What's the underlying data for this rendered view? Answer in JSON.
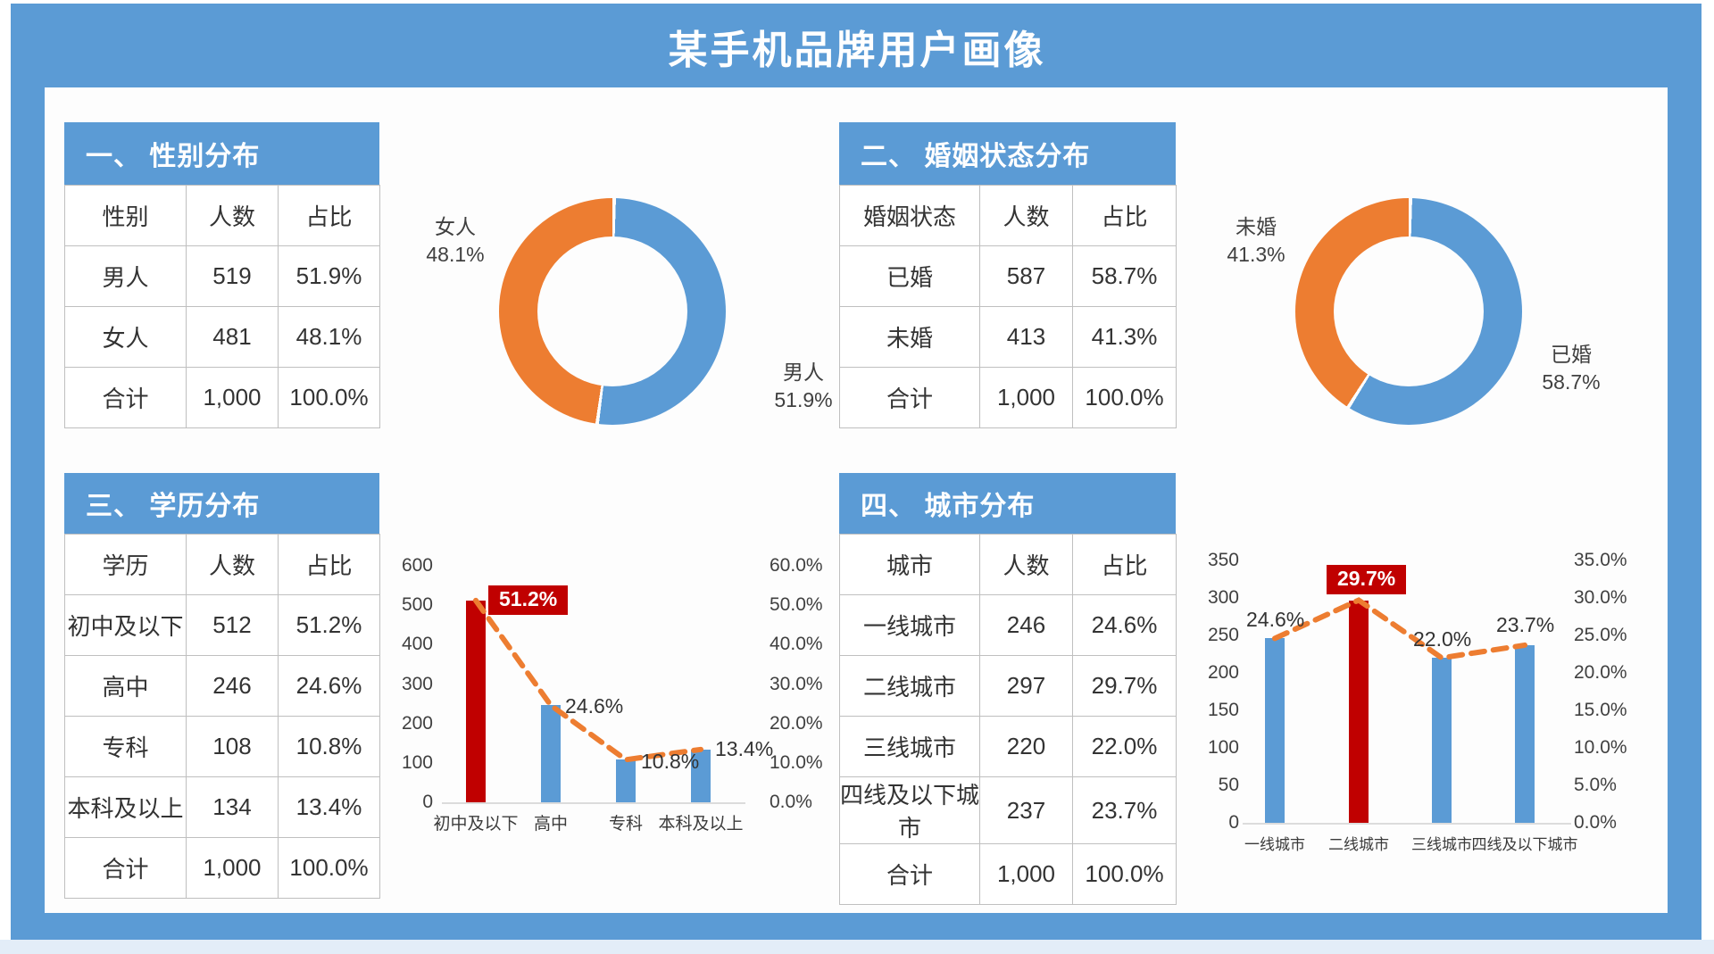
{
  "page": {
    "title": "某手机品牌用户画像"
  },
  "colors": {
    "frame_blue": "#5B9BD5",
    "bar_blue": "#5B9BD5",
    "orange": "#ED7D31",
    "red": "#C00000",
    "panel_bg": "#FDFDFD",
    "table_border": "#BFBFBF",
    "text": "#333333"
  },
  "sections": [
    {
      "heading": "一、 性别分布",
      "table": {
        "headers": [
          "性别",
          "人数",
          "占比"
        ],
        "rows": [
          [
            "男人",
            "519",
            "51.9%"
          ],
          [
            "女人",
            "481",
            "48.1%"
          ],
          [
            "合计",
            "1,000",
            "100.0%"
          ]
        ]
      }
    },
    {
      "heading": "二、 婚姻状态分布",
      "table": {
        "headers": [
          "婚姻状态",
          "人数",
          "占比"
        ],
        "rows": [
          [
            "已婚",
            "587",
            "58.7%"
          ],
          [
            "未婚",
            "413",
            "41.3%"
          ],
          [
            "合计",
            "1,000",
            "100.0%"
          ]
        ]
      }
    },
    {
      "heading": "三、 学历分布",
      "table": {
        "headers": [
          "学历",
          "人数",
          "占比"
        ],
        "rows": [
          [
            "初中及以下",
            "512",
            "51.2%"
          ],
          [
            "高中",
            "246",
            "24.6%"
          ],
          [
            "专科",
            "108",
            "10.8%"
          ],
          [
            "本科及以上",
            "134",
            "13.4%"
          ],
          [
            "合计",
            "1,000",
            "100.0%"
          ]
        ]
      }
    },
    {
      "heading": "四、 城市分布",
      "table": {
        "headers": [
          "城市",
          "人数",
          "占比"
        ],
        "rows": [
          [
            "一线城市",
            "246",
            "24.6%"
          ],
          [
            "二线城市",
            "297",
            "29.7%"
          ],
          [
            "三线城市",
            "220",
            "22.0%"
          ],
          [
            "四线及以下城市",
            "237",
            "23.7%"
          ],
          [
            "合计",
            "1,000",
            "100.0%"
          ]
        ]
      }
    }
  ],
  "chart_data": [
    {
      "type": "pie",
      "subtype": "donut",
      "title": "性别分布",
      "labels": [
        "男人",
        "女人"
      ],
      "values": [
        51.9,
        48.1
      ],
      "colors": [
        "#5B9BD5",
        "#ED7D31"
      ],
      "callouts": [
        {
          "name": "女人",
          "pct": "48.1%",
          "side": "left"
        },
        {
          "name": "男人",
          "pct": "51.9%",
          "side": "right"
        }
      ]
    },
    {
      "type": "pie",
      "subtype": "donut",
      "title": "婚姻状态分布",
      "labels": [
        "已婚",
        "未婚"
      ],
      "values": [
        58.7,
        41.3
      ],
      "colors": [
        "#5B9BD5",
        "#ED7D31"
      ],
      "callouts": [
        {
          "name": "未婚",
          "pct": "41.3%",
          "side": "left"
        },
        {
          "name": "已婚",
          "pct": "58.7%",
          "side": "right"
        }
      ]
    },
    {
      "type": "bar",
      "title": "学历分布",
      "categories": [
        "初中及以下",
        "高中",
        "专科",
        "本科及以上"
      ],
      "series": [
        {
          "name": "人数",
          "type": "column",
          "values": [
            512,
            246,
            108,
            134
          ]
        },
        {
          "name": "占比",
          "type": "line",
          "values": [
            51.2,
            24.6,
            10.8,
            13.4
          ]
        }
      ],
      "bar_colors": [
        "#C00000",
        "#5B9BD5",
        "#5B9BD5",
        "#5B9BD5"
      ],
      "line_color": "#ED7D31",
      "point_labels": [
        "51.2%",
        "24.6%",
        "10.8%",
        "13.4%"
      ],
      "highlight_index": 0,
      "left_axis": {
        "min": 0,
        "max": 600,
        "ticks": [
          "600",
          "500",
          "400",
          "300",
          "200",
          "100",
          "0"
        ]
      },
      "right_axis": {
        "min": 0,
        "max": 60,
        "ticks": [
          "60.0%",
          "50.0%",
          "40.0%",
          "30.0%",
          "20.0%",
          "10.0%",
          "0.0%"
        ]
      },
      "grid": false,
      "legend": "none"
    },
    {
      "type": "bar",
      "title": "城市分布",
      "categories": [
        "一线城市",
        "二线城市",
        "三线城市",
        "四线及以下城市"
      ],
      "series": [
        {
          "name": "人数",
          "type": "column",
          "values": [
            246,
            297,
            220,
            237
          ]
        },
        {
          "name": "占比",
          "type": "line",
          "values": [
            24.6,
            29.7,
            22.0,
            23.7
          ]
        }
      ],
      "bar_colors": [
        "#5B9BD5",
        "#C00000",
        "#5B9BD5",
        "#5B9BD5"
      ],
      "line_color": "#ED7D31",
      "point_labels": [
        "24.6%",
        "29.7%",
        "22.0%",
        "23.7%"
      ],
      "highlight_index": 1,
      "left_axis": {
        "min": 0,
        "max": 350,
        "ticks": [
          "350",
          "300",
          "250",
          "200",
          "150",
          "100",
          "50",
          "0"
        ]
      },
      "right_axis": {
        "min": 0,
        "max": 35,
        "ticks": [
          "35.0%",
          "30.0%",
          "25.0%",
          "20.0%",
          "15.0%",
          "10.0%",
          "5.0%",
          "0.0%"
        ]
      },
      "grid": false,
      "legend": "none"
    }
  ]
}
